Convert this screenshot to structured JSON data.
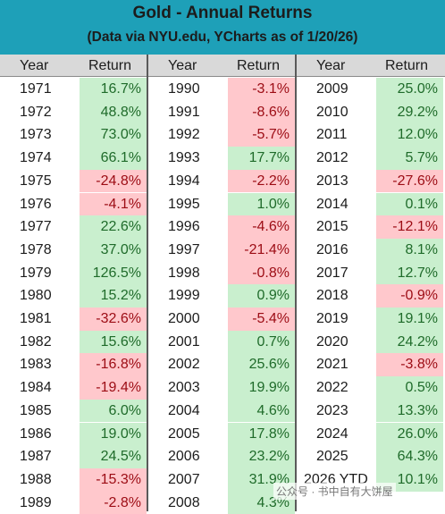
{
  "title": "Gold - Annual Returns",
  "subtitle": "(Data via NYU.edu, YCharts as of 1/20/26)",
  "headers": {
    "year": "Year",
    "return": "Return"
  },
  "colors": {
    "header_bg": "#1ea0b8",
    "positive_bg": "#c9efce",
    "positive_text": "#1f6b2a",
    "negative_bg": "#ffc8cc",
    "negative_text": "#9c0c14"
  },
  "watermark": "公众号 · 书中自有大饼屋",
  "chart_data": {
    "type": "table",
    "title": "Gold - Annual Returns",
    "subtitle": "(Data via NYU.edu, YCharts as of 1/20/26)",
    "columns": [
      "Year",
      "Return"
    ],
    "rows": [
      {
        "year": "1971",
        "return": "16.7%",
        "value": 16.7
      },
      {
        "year": "1972",
        "return": "48.8%",
        "value": 48.8
      },
      {
        "year": "1973",
        "return": "73.0%",
        "value": 73.0
      },
      {
        "year": "1974",
        "return": "66.1%",
        "value": 66.1
      },
      {
        "year": "1975",
        "return": "-24.8%",
        "value": -24.8
      },
      {
        "year": "1976",
        "return": "-4.1%",
        "value": -4.1
      },
      {
        "year": "1977",
        "return": "22.6%",
        "value": 22.6
      },
      {
        "year": "1978",
        "return": "37.0%",
        "value": 37.0
      },
      {
        "year": "1979",
        "return": "126.5%",
        "value": 126.5
      },
      {
        "year": "1980",
        "return": "15.2%",
        "value": 15.2
      },
      {
        "year": "1981",
        "return": "-32.6%",
        "value": -32.6
      },
      {
        "year": "1982",
        "return": "15.6%",
        "value": 15.6
      },
      {
        "year": "1983",
        "return": "-16.8%",
        "value": -16.8
      },
      {
        "year": "1984",
        "return": "-19.4%",
        "value": -19.4
      },
      {
        "year": "1985",
        "return": "6.0%",
        "value": 6.0
      },
      {
        "year": "1986",
        "return": "19.0%",
        "value": 19.0
      },
      {
        "year": "1987",
        "return": "24.5%",
        "value": 24.5
      },
      {
        "year": "1988",
        "return": "-15.3%",
        "value": -15.3
      },
      {
        "year": "1989",
        "return": "-2.8%",
        "value": -2.8
      },
      {
        "year": "1990",
        "return": "-3.1%",
        "value": -3.1
      },
      {
        "year": "1991",
        "return": "-8.6%",
        "value": -8.6
      },
      {
        "year": "1992",
        "return": "-5.7%",
        "value": -5.7
      },
      {
        "year": "1993",
        "return": "17.7%",
        "value": 17.7
      },
      {
        "year": "1994",
        "return": "-2.2%",
        "value": -2.2
      },
      {
        "year": "1995",
        "return": "1.0%",
        "value": 1.0
      },
      {
        "year": "1996",
        "return": "-4.6%",
        "value": -4.6
      },
      {
        "year": "1997",
        "return": "-21.4%",
        "value": -21.4
      },
      {
        "year": "1998",
        "return": "-0.8%",
        "value": -0.8
      },
      {
        "year": "1999",
        "return": "0.9%",
        "value": 0.9
      },
      {
        "year": "2000",
        "return": "-5.4%",
        "value": -5.4
      },
      {
        "year": "2001",
        "return": "0.7%",
        "value": 0.7
      },
      {
        "year": "2002",
        "return": "25.6%",
        "value": 25.6
      },
      {
        "year": "2003",
        "return": "19.9%",
        "value": 19.9
      },
      {
        "year": "2004",
        "return": "4.6%",
        "value": 4.6
      },
      {
        "year": "2005",
        "return": "17.8%",
        "value": 17.8
      },
      {
        "year": "2006",
        "return": "23.2%",
        "value": 23.2
      },
      {
        "year": "2007",
        "return": "31.9%",
        "value": 31.9
      },
      {
        "year": "2008",
        "return": "4.3%",
        "value": 4.3
      },
      {
        "year": "2009",
        "return": "25.0%",
        "value": 25.0
      },
      {
        "year": "2010",
        "return": "29.2%",
        "value": 29.2
      },
      {
        "year": "2011",
        "return": "12.0%",
        "value": 12.0
      },
      {
        "year": "2012",
        "return": "5.7%",
        "value": 5.7
      },
      {
        "year": "2013",
        "return": "-27.6%",
        "value": -27.6
      },
      {
        "year": "2014",
        "return": "0.1%",
        "value": 0.1
      },
      {
        "year": "2015",
        "return": "-12.1%",
        "value": -12.1
      },
      {
        "year": "2016",
        "return": "8.1%",
        "value": 8.1
      },
      {
        "year": "2017",
        "return": "12.7%",
        "value": 12.7
      },
      {
        "year": "2018",
        "return": "-0.9%",
        "value": -0.9
      },
      {
        "year": "2019",
        "return": "19.1%",
        "value": 19.1
      },
      {
        "year": "2020",
        "return": "24.2%",
        "value": 24.2
      },
      {
        "year": "2021",
        "return": "-3.8%",
        "value": -3.8
      },
      {
        "year": "2022",
        "return": "0.5%",
        "value": 0.5
      },
      {
        "year": "2023",
        "return": "13.3%",
        "value": 13.3
      },
      {
        "year": "2024",
        "return": "26.0%",
        "value": 26.0
      },
      {
        "year": "2025",
        "return": "64.3%",
        "value": 64.3
      },
      {
        "year": "2026 YTD",
        "return": "10.1%",
        "value": 10.1
      }
    ]
  }
}
